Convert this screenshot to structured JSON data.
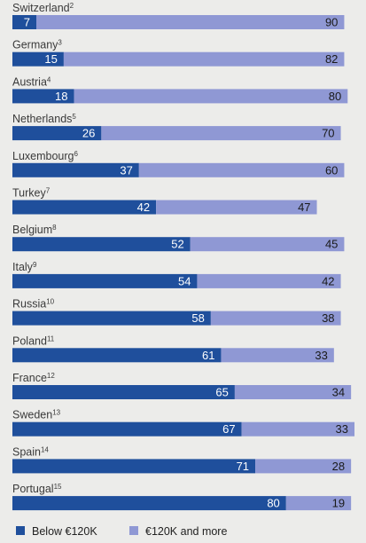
{
  "chart_data": {
    "type": "bar",
    "orientation": "horizontal",
    "stacked": true,
    "categories": [
      {
        "name": "Switzerland",
        "note": "2"
      },
      {
        "name": "Germany",
        "note": "3"
      },
      {
        "name": "Austria",
        "note": "4"
      },
      {
        "name": "Netherlands",
        "note": "5"
      },
      {
        "name": "Luxembourg",
        "note": "6"
      },
      {
        "name": "Turkey",
        "note": "7"
      },
      {
        "name": "Belgium",
        "note": "8"
      },
      {
        "name": "Italy",
        "note": "9"
      },
      {
        "name": "Russia",
        "note": "10"
      },
      {
        "name": "Poland",
        "note": "11"
      },
      {
        "name": "France",
        "note": "12"
      },
      {
        "name": "Sweden",
        "note": "13"
      },
      {
        "name": "Spain",
        "note": "14"
      },
      {
        "name": "Portugal",
        "note": "15"
      }
    ],
    "series": [
      {
        "name": "Below €120K",
        "color": "#1f4f9c",
        "values": [
          7,
          15,
          18,
          26,
          37,
          42,
          52,
          54,
          58,
          61,
          65,
          67,
          71,
          80
        ]
      },
      {
        "name": "€120K and more",
        "color": "#8f98d4",
        "values": [
          90,
          82,
          80,
          70,
          60,
          47,
          45,
          42,
          38,
          33,
          34,
          33,
          28,
          19
        ]
      }
    ],
    "xlim": [
      0,
      100
    ],
    "grid": false,
    "legend_position": "bottom"
  }
}
